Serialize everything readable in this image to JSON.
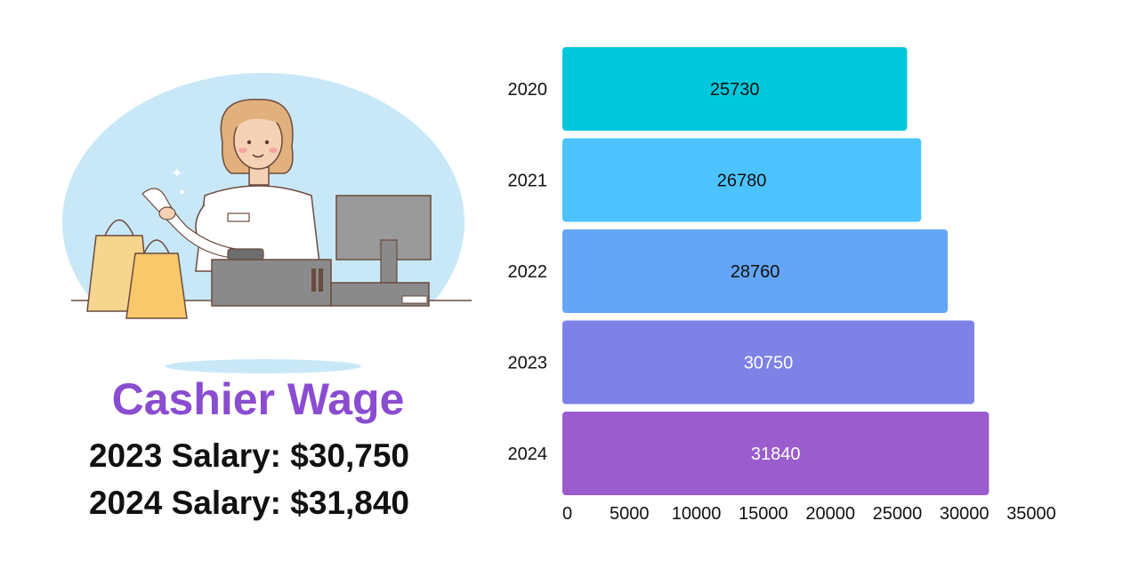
{
  "infographic": {
    "title": "Cashier Wage",
    "salary_lines": [
      "2023 Salary: $30,750",
      "2024 Salary: $31,840"
    ]
  },
  "illustration": {
    "icon": "cashier-at-register-illustration",
    "colors": {
      "backdrop": "#c8e8f7",
      "bag_light": "#f6d58e",
      "bag_dark": "#f8c86a",
      "register": "#8a8a8a",
      "monitor": "#9a9a9a"
    }
  },
  "chart_data": {
    "type": "bar",
    "orientation": "horizontal",
    "categories": [
      "2020",
      "2021",
      "2022",
      "2023",
      "2024"
    ],
    "values": [
      25730,
      26780,
      28760,
      30750,
      31840
    ],
    "bar_colors": [
      "#00c8dc",
      "#4cc3fd",
      "#64a5f6",
      "#7e82e6",
      "#9b5dce"
    ],
    "label_colors": [
      "#111111",
      "#111111",
      "#111111",
      "#ffffff",
      "#ffffff"
    ],
    "xlim": [
      0,
      35000
    ],
    "xticks": [
      0,
      5000,
      10000,
      15000,
      20000,
      25000,
      30000,
      35000
    ],
    "grid": false,
    "title": "",
    "xlabel": "",
    "ylabel": ""
  }
}
